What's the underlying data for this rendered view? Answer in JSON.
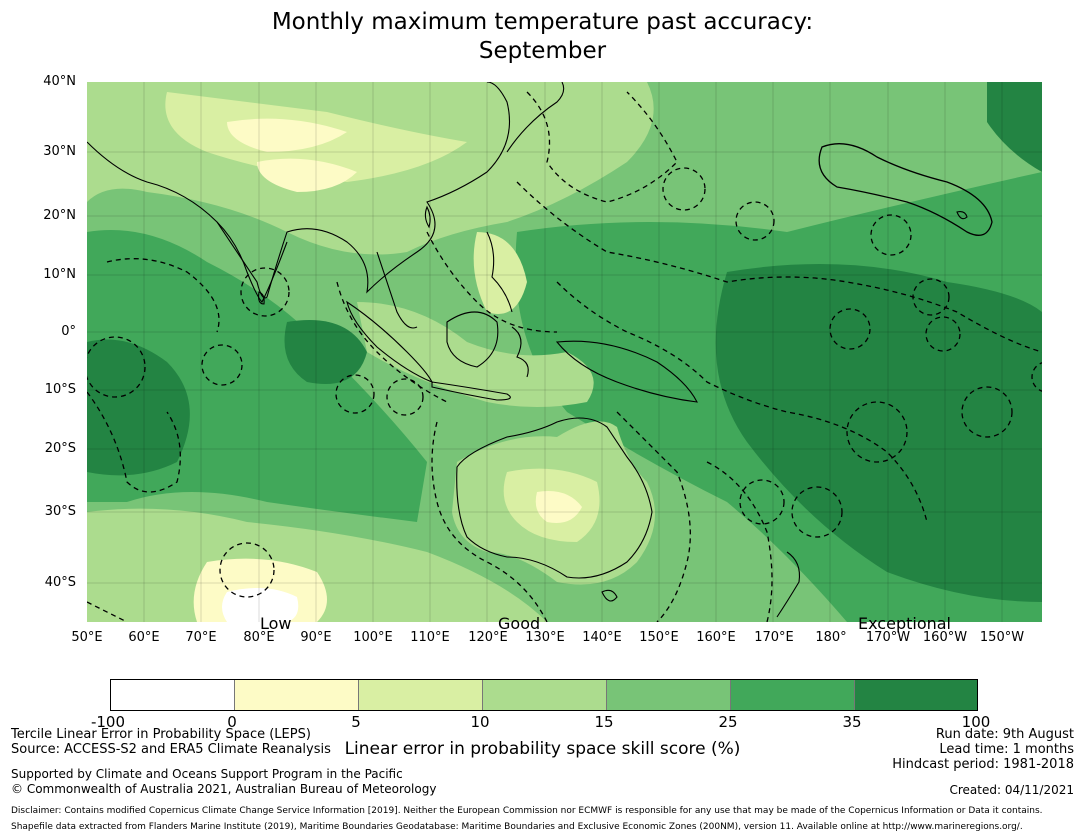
{
  "title": {
    "line1": "Monthly maximum temperature past accuracy:",
    "line2": "September"
  },
  "map": {
    "lat_labels": [
      "40°N",
      "30°N",
      "20°N",
      "10°N",
      "0°",
      "10°S",
      "20°S",
      "30°S",
      "40°S"
    ],
    "lon_labels": [
      "50°E",
      "60°E",
      "70°E",
      "80°E",
      "90°E",
      "100°E",
      "110°E",
      "120°E",
      "130°E",
      "140°E",
      "150°E",
      "160°E",
      "170°E",
      "180°",
      "170°W",
      "160°W",
      "150°W"
    ],
    "category_labels": {
      "low": "Low",
      "good": "Good",
      "exceptional": "Exceptional"
    },
    "colors": {
      "land_line": "#000000",
      "eez_line": "#000000"
    }
  },
  "colorbar": {
    "ticks": [
      "-100",
      "0",
      "5",
      "10",
      "15",
      "25",
      "35",
      "100"
    ],
    "colors": [
      "#ffffff",
      "#fdfbc6",
      "#d9efa3",
      "#acdc8e",
      "#78c477",
      "#41a85a",
      "#238443"
    ],
    "label": "Linear error in probability space skill score (%)"
  },
  "footer": {
    "method": "Tercile Linear Error in Probability Space (LEPS)",
    "source": "Source: ACCESS-S2 and ERA5 Climate Reanalysis",
    "run_date": "Run date: 9th August",
    "lead_time": "Lead time: 1 months",
    "hindcast": "Hindcast period: 1981-2018",
    "support": "Supported by Climate and Oceans Support Program in the Pacific",
    "copyright": "© Commonwealth of Australia 2021, Australian Bureau of Meteorology",
    "created": "Created: 04/11/2021",
    "disclaimer": "Disclaimer: Contains modified Copernicus Climate Change Service Information [2019]. Neither the European Commission nor ECMWF is responsible for any use that may be made of the Copernicus Information or Data it contains.",
    "shapefile": "Shapefile data extracted from Flanders Marine Institute (2019), Maritime Boundaries Geodatabase: Maritime Boundaries and Exclusive Economic Zones (200NM), version 11. Available online at http://www.marineregions.org/."
  }
}
